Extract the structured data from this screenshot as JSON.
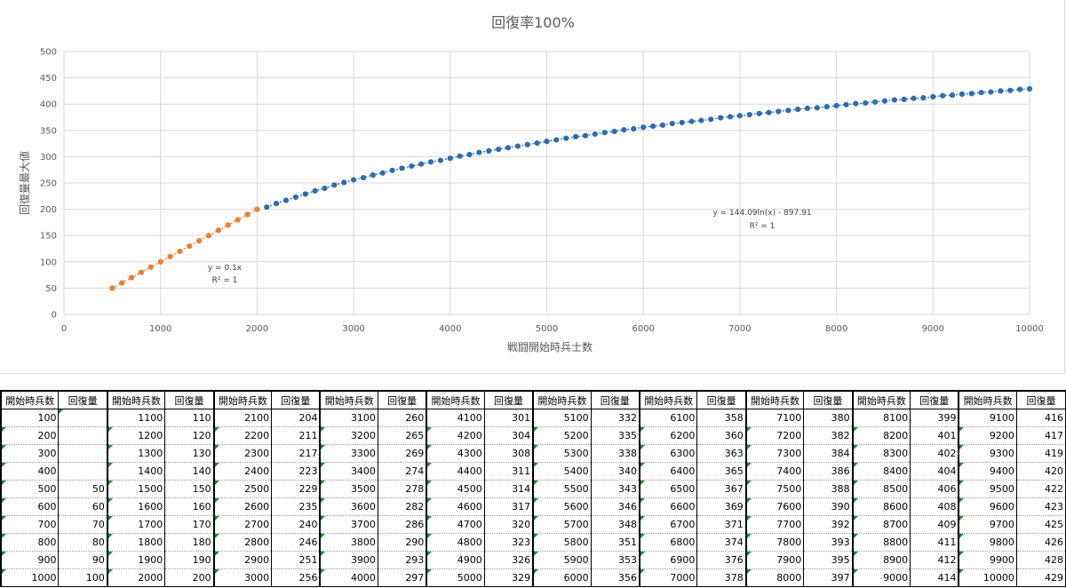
{
  "chart_data": {
    "type": "scatter",
    "title": "回復率100%",
    "xlabel": "戦闘開始時兵士数",
    "ylabel": "回復量最大値",
    "xlim": [
      0,
      10000
    ],
    "ylim": [
      0,
      500
    ],
    "x_ticks": [
      "0",
      "1000",
      "2000",
      "3000",
      "4000",
      "5000",
      "6000",
      "7000",
      "8000",
      "9000",
      "10000"
    ],
    "y_ticks": [
      "0",
      "50",
      "100",
      "150",
      "200",
      "250",
      "300",
      "350",
      "400",
      "450",
      "500"
    ],
    "grid": true,
    "series": [
      {
        "color": "#ed7d31",
        "x": [
          500,
          600,
          700,
          800,
          900,
          1000,
          1100,
          1200,
          1300,
          1400,
          1500,
          1600,
          1700,
          1800,
          1900,
          2000
        ],
        "y": [
          50,
          60,
          70,
          80,
          90,
          100,
          110,
          120,
          130,
          140,
          150,
          160,
          170,
          180,
          190,
          200
        ],
        "trendline": {
          "equation": "y = 0.1x",
          "r2": "R² = 1"
        }
      },
      {
        "color": "#2e6cb0",
        "x": [
          2100,
          2200,
          2300,
          2400,
          2500,
          2600,
          2700,
          2800,
          2900,
          3000,
          3100,
          3200,
          3300,
          3400,
          3500,
          3600,
          3700,
          3800,
          3900,
          4000,
          4100,
          4200,
          4300,
          4400,
          4500,
          4600,
          4700,
          4800,
          4900,
          5000,
          5100,
          5200,
          5300,
          5400,
          5500,
          5600,
          5700,
          5800,
          5900,
          6000,
          6100,
          6200,
          6300,
          6400,
          6500,
          6600,
          6700,
          6800,
          6900,
          7000,
          7100,
          7200,
          7300,
          7400,
          7500,
          7600,
          7700,
          7800,
          7900,
          8000,
          8100,
          8200,
          8300,
          8400,
          8500,
          8600,
          8700,
          8800,
          8900,
          9000,
          9100,
          9200,
          9300,
          9400,
          9500,
          9600,
          9700,
          9800,
          9900,
          10000
        ],
        "y": [
          204,
          211,
          217,
          223,
          229,
          235,
          240,
          246,
          251,
          256,
          260,
          265,
          269,
          274,
          278,
          282,
          286,
          290,
          293,
          297,
          301,
          304,
          308,
          311,
          314,
          317,
          320,
          323,
          326,
          329,
          332,
          335,
          338,
          340,
          343,
          346,
          348,
          351,
          353,
          356,
          358,
          360,
          363,
          365,
          367,
          369,
          371,
          374,
          376,
          378,
          380,
          382,
          384,
          386,
          388,
          390,
          392,
          393,
          395,
          397,
          399,
          401,
          402,
          404,
          406,
          408,
          409,
          411,
          412,
          414,
          416,
          417,
          419,
          420,
          422,
          423,
          425,
          426,
          428,
          429
        ],
        "trendline": {
          "equation": "y = 144.09ln(x) - 897.91",
          "r2": "R² = 1"
        }
      }
    ]
  },
  "table": {
    "header_a": "開始時兵数",
    "header_b": "回復量",
    "blocks": [
      {
        "a": [
          "100",
          "200",
          "300",
          "400",
          "500",
          "600",
          "700",
          "800",
          "900",
          "1000"
        ],
        "b": [
          "",
          "",
          "",
          "",
          "50",
          "60",
          "70",
          "80",
          "90",
          "100"
        ]
      },
      {
        "a": [
          "1100",
          "1200",
          "1300",
          "1400",
          "1500",
          "1600",
          "1700",
          "1800",
          "1900",
          "2000"
        ],
        "b": [
          "110",
          "120",
          "130",
          "140",
          "150",
          "160",
          "170",
          "180",
          "190",
          "200"
        ]
      },
      {
        "a": [
          "2100",
          "2200",
          "2300",
          "2400",
          "2500",
          "2600",
          "2700",
          "2800",
          "2900",
          "3000"
        ],
        "b": [
          "204",
          "211",
          "217",
          "223",
          "229",
          "235",
          "240",
          "246",
          "251",
          "256"
        ]
      },
      {
        "a": [
          "3100",
          "3200",
          "3300",
          "3400",
          "3500",
          "3600",
          "3700",
          "3800",
          "3900",
          "4000"
        ],
        "b": [
          "260",
          "265",
          "269",
          "274",
          "278",
          "282",
          "286",
          "290",
          "293",
          "297"
        ]
      },
      {
        "a": [
          "4100",
          "4200",
          "4300",
          "4400",
          "4500",
          "4600",
          "4700",
          "4800",
          "4900",
          "5000"
        ],
        "b": [
          "301",
          "304",
          "308",
          "311",
          "314",
          "317",
          "320",
          "323",
          "326",
          "329"
        ]
      },
      {
        "a": [
          "5100",
          "5200",
          "5300",
          "5400",
          "5500",
          "5600",
          "5700",
          "5800",
          "5900",
          "6000"
        ],
        "b": [
          "332",
          "335",
          "338",
          "340",
          "343",
          "346",
          "348",
          "351",
          "353",
          "356"
        ]
      },
      {
        "a": [
          "6100",
          "6200",
          "6300",
          "6400",
          "6500",
          "6600",
          "6700",
          "6800",
          "6900",
          "7000"
        ],
        "b": [
          "358",
          "360",
          "363",
          "365",
          "367",
          "369",
          "371",
          "374",
          "376",
          "378"
        ]
      },
      {
        "a": [
          "7100",
          "7200",
          "7300",
          "7400",
          "7500",
          "7600",
          "7700",
          "7800",
          "7900",
          "8000"
        ],
        "b": [
          "380",
          "382",
          "384",
          "386",
          "388",
          "390",
          "392",
          "393",
          "395",
          "397"
        ]
      },
      {
        "a": [
          "8100",
          "8200",
          "8300",
          "8400",
          "8500",
          "8600",
          "8700",
          "8800",
          "8900",
          "9000"
        ],
        "b": [
          "399",
          "401",
          "402",
          "404",
          "406",
          "408",
          "409",
          "411",
          "412",
          "414"
        ]
      },
      {
        "a": [
          "9100",
          "9200",
          "9300",
          "9400",
          "9500",
          "9600",
          "9700",
          "9800",
          "9900",
          "10000"
        ],
        "b": [
          "416",
          "417",
          "419",
          "420",
          "422",
          "423",
          "425",
          "426",
          "428",
          "429"
        ]
      }
    ]
  }
}
